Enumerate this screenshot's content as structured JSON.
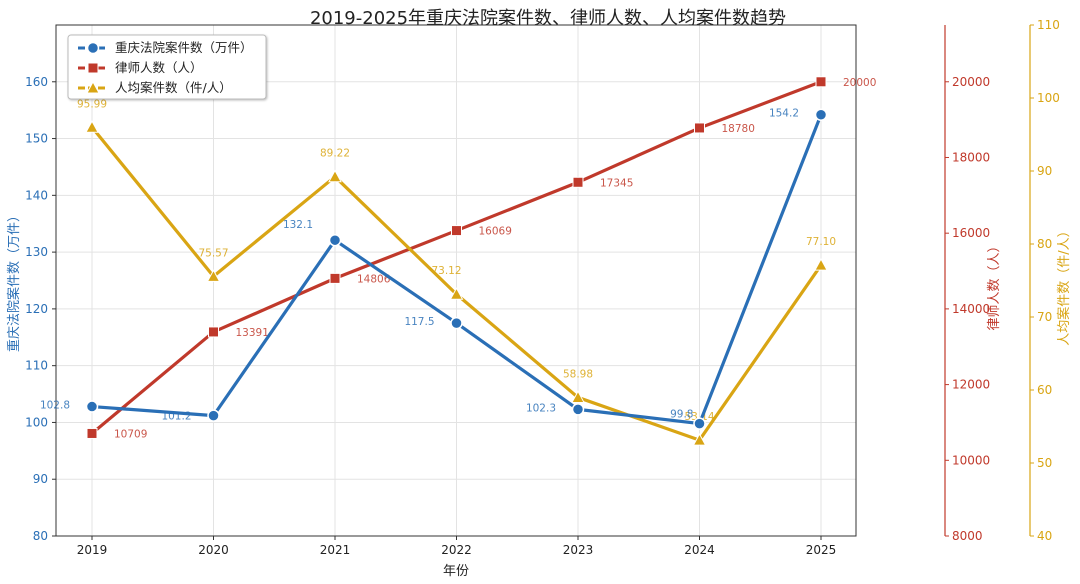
{
  "chart_data": {
    "type": "line",
    "title": "2019-2025年重庆法院案件数、律师人数、人均案件数趋势",
    "xlabel": "年份",
    "categories": [
      "2019",
      "2020",
      "2021",
      "2022",
      "2023",
      "2024",
      "2025"
    ],
    "axes": {
      "left": {
        "label": "重庆法院案件数（万件）",
        "range": [
          80,
          170
        ],
        "ticks": [
          80,
          90,
          100,
          110,
          120,
          130,
          140,
          150,
          160
        ],
        "color": "#2a6fb6"
      },
      "right1": {
        "label": "律师人数（人）",
        "range": [
          8000,
          21500
        ],
        "ticks": [
          8000,
          10000,
          12000,
          14000,
          16000,
          18000,
          20000
        ],
        "color": "#c0392b"
      },
      "right2": {
        "label": "人均案件数（件/人）",
        "range": [
          40,
          110
        ],
        "ticks": [
          40,
          50,
          60,
          70,
          80,
          90,
          100,
          110
        ],
        "color": "#d9a514"
      }
    },
    "series": [
      {
        "name": "重庆法院案件数（万件）",
        "axis": "left",
        "color": "#2a6fb6",
        "marker": "circle",
        "values": [
          102.8,
          101.2,
          132.1,
          117.5,
          102.3,
          99.8,
          154.2
        ],
        "labels": [
          "102.8",
          "101.2",
          "132.1",
          "117.5",
          "102.3",
          "99.8",
          "154.2"
        ]
      },
      {
        "name": "律师人数（人）",
        "axis": "right1",
        "color": "#c0392b",
        "marker": "square",
        "values": [
          10709,
          13391,
          14806,
          16069,
          17345,
          18780,
          20000
        ],
        "labels": [
          "10709",
          "13391",
          "14806",
          "16069",
          "17345",
          "18780",
          "20000"
        ]
      },
      {
        "name": "人均案件数（件/人）",
        "axis": "right2",
        "color": "#d9a514",
        "marker": "triangle",
        "values": [
          95.99,
          75.57,
          89.22,
          73.12,
          58.98,
          53.14,
          77.1
        ],
        "labels": [
          "95.99",
          "75.57",
          "89.22",
          "73.12",
          "58.98",
          "53.14",
          "77.10"
        ]
      }
    ],
    "legend_position": "top-left",
    "grid": true
  }
}
